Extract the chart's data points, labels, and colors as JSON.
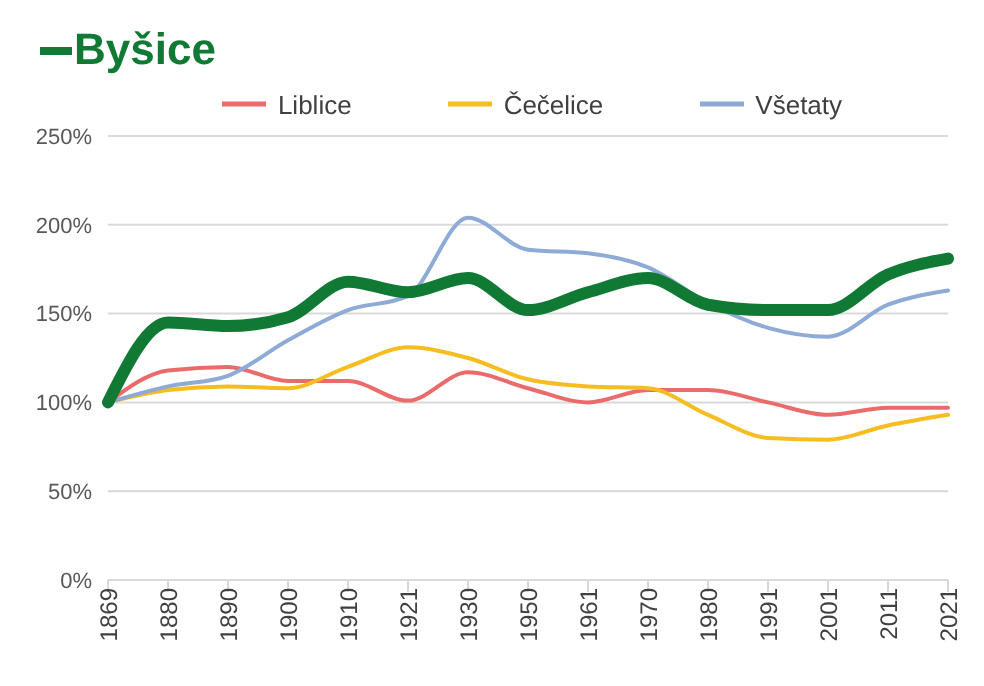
{
  "chart_data": {
    "type": "line",
    "title": "Byšice",
    "categories": [
      "1869",
      "1880",
      "1890",
      "1900",
      "1910",
      "1921",
      "1930",
      "1950",
      "1961",
      "1970",
      "1980",
      "1991",
      "2001",
      "2011",
      "2021"
    ],
    "series": [
      {
        "color": "#107a35",
        "values": [
          100,
          145,
          143,
          148,
          168,
          162,
          170,
          152,
          162,
          170,
          155,
          152,
          152,
          172,
          181
        ]
      },
      {
        "name": "Liblice",
        "color": "#eb6b6b",
        "values": [
          100,
          118,
          120,
          112,
          112,
          101,
          117,
          108,
          100,
          107,
          107,
          100,
          93,
          97,
          97
        ]
      },
      {
        "name": "Čečelice",
        "color": "#f5bd1f",
        "values": [
          100,
          107,
          109,
          108,
          120,
          131,
          125,
          113,
          109,
          108,
          93,
          80,
          79,
          87,
          93
        ]
      },
      {
        "name": "Všetaty",
        "color": "#8eaad6",
        "values": [
          100,
          109,
          115,
          135,
          152,
          160,
          204,
          186,
          184,
          176,
          156,
          142,
          137,
          155,
          163
        ]
      }
    ],
    "ylim": [
      0,
      250
    ],
    "yticks": [
      {
        "value": 0,
        "label": "0%"
      },
      {
        "value": 50,
        "label": "50%"
      },
      {
        "value": 100,
        "label": "100%"
      },
      {
        "value": 150,
        "label": "150%"
      },
      {
        "value": 200,
        "label": "200%"
      },
      {
        "value": 250,
        "label": "250%"
      }
    ],
    "grid": "y",
    "legend": "top",
    "marker": "none",
    "line_style": "solid"
  }
}
